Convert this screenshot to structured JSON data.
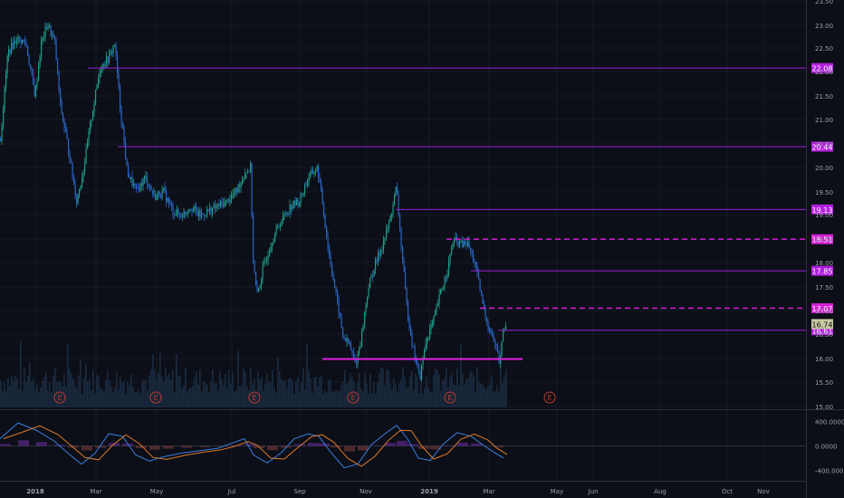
{
  "colors": {
    "background": "#0c0f17",
    "axis_text": "#9aa0ab",
    "grid": "#151a24",
    "candle_up": "#1f9e89",
    "candle_down": "#2a66c8",
    "volume": "#1a2b40",
    "level_line": "#9a1fd6",
    "level_dash": "#d41fd4",
    "support": "#e01fe0",
    "level_tag": "#b41fe0",
    "price_tag": "#c8c8a0",
    "earnings": "#c0392b",
    "macd_line": "#3a7de0",
    "signal_line": "#e07a2a"
  },
  "chart_data": [
    {
      "type": "candlestick",
      "x_ticks": [
        "2018",
        "Mar",
        "May",
        "Jul",
        "Sep",
        "Nov",
        "2019",
        "Mar",
        "May",
        "Jun",
        "Aug",
        "Oct",
        "Nov"
      ],
      "y_ticks": [
        "15.00",
        "15.50",
        "16.00",
        "16.50",
        "17.00",
        "17.50",
        "18.00",
        "18.50",
        "19.00",
        "19.50",
        "20.00",
        "20.50",
        "21.00",
        "21.50",
        "22.00",
        "22.50",
        "23.00",
        "23.50"
      ],
      "ylim": [
        15.0,
        23.5
      ],
      "price_path": [
        [
          0,
          20.6
        ],
        [
          8,
          22.4
        ],
        [
          18,
          22.7
        ],
        [
          28,
          22.6
        ],
        [
          38,
          21.5
        ],
        [
          45,
          22.6
        ],
        [
          52,
          23.0
        ],
        [
          60,
          22.6
        ],
        [
          66,
          21.3
        ],
        [
          74,
          20.5
        ],
        [
          84,
          19.3
        ],
        [
          92,
          20.0
        ],
        [
          100,
          21.0
        ],
        [
          110,
          22.1
        ],
        [
          120,
          22.3
        ],
        [
          126,
          22.6
        ],
        [
          132,
          21.3
        ],
        [
          140,
          19.9
        ],
        [
          150,
          19.5
        ],
        [
          160,
          19.8
        ],
        [
          170,
          19.4
        ],
        [
          180,
          19.5
        ],
        [
          190,
          19.1
        ],
        [
          200,
          19.0
        ],
        [
          210,
          19.2
        ],
        [
          220,
          19.0
        ],
        [
          230,
          19.1
        ],
        [
          240,
          19.2
        ],
        [
          250,
          19.3
        ],
        [
          260,
          19.5
        ],
        [
          270,
          19.9
        ],
        [
          276,
          20.0
        ],
        [
          279,
          18.1
        ],
        [
          283,
          17.3
        ],
        [
          290,
          17.9
        ],
        [
          300,
          18.5
        ],
        [
          310,
          18.9
        ],
        [
          320,
          19.2
        ],
        [
          330,
          19.3
        ],
        [
          340,
          19.8
        ],
        [
          350,
          20.0
        ],
        [
          356,
          19.2
        ],
        [
          362,
          18.3
        ],
        [
          370,
          17.4
        ],
        [
          378,
          16.5
        ],
        [
          385,
          16.3
        ],
        [
          392,
          15.9
        ],
        [
          398,
          16.4
        ],
        [
          406,
          17.5
        ],
        [
          414,
          18.0
        ],
        [
          422,
          18.4
        ],
        [
          430,
          18.9
        ],
        [
          437,
          19.6
        ],
        [
          442,
          18.5
        ],
        [
          448,
          17.2
        ],
        [
          455,
          16.3
        ],
        [
          463,
          15.6
        ],
        [
          470,
          16.4
        ],
        [
          478,
          16.8
        ],
        [
          486,
          17.4
        ],
        [
          494,
          17.9
        ],
        [
          500,
          18.5
        ],
        [
          508,
          18.4
        ],
        [
          516,
          18.4
        ],
        [
          524,
          18.0
        ],
        [
          532,
          17.2
        ],
        [
          540,
          16.6
        ],
        [
          547,
          16.3
        ],
        [
          551,
          15.9
        ],
        [
          555,
          16.6
        ],
        [
          558,
          16.74
        ]
      ],
      "horizontal_levels": [
        {
          "price": 22.08,
          "label": "22.08",
          "style": "solid",
          "x_start": 97
        },
        {
          "price": 20.44,
          "label": "20.44",
          "style": "solid",
          "x_start": 130
        },
        {
          "price": 19.13,
          "label": "19.13",
          "style": "solid",
          "x_start": 437
        },
        {
          "price": 18.51,
          "label": "18.51",
          "style": "dashed",
          "x_start": 493
        },
        {
          "price": 17.85,
          "label": "17.85",
          "style": "solid",
          "x_start": 520
        },
        {
          "price": 17.07,
          "label": "17.07",
          "style": "dashed",
          "x_start": 530
        },
        {
          "price": 16.61,
          "label": "16.61",
          "style": "solid",
          "x_start": 550
        },
        {
          "price": 16.01,
          "label": "",
          "style": "support",
          "x_start": 356,
          "x_end": 577
        }
      ],
      "last_price": "16.74",
      "earnings_markers": [
        {
          "label": "E"
        },
        {
          "label": "E"
        },
        {
          "label": "E"
        },
        {
          "label": "E"
        },
        {
          "label": "E"
        },
        {
          "label": "E"
        }
      ]
    },
    {
      "type": "line",
      "name": "oscillator",
      "y_ticks": [
        "400.0000",
        "0.0000",
        "-400.0000"
      ],
      "ylim": [
        -560,
        560
      ]
    }
  ]
}
